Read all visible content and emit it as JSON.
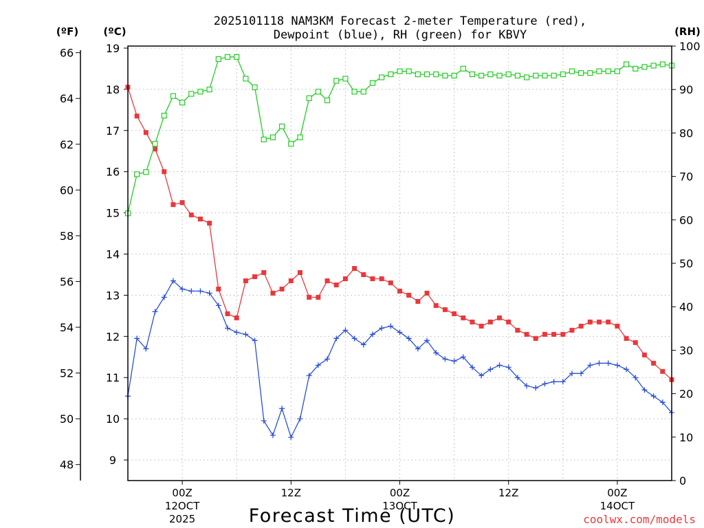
{
  "chart_data": {
    "type": "line",
    "title_line1": "2025101118 NAM3KM Forecast 2-meter Temperature (red),",
    "title_line2": "Dewpoint (blue), RH (green) for KBVY",
    "xlabel": "Forecast Time (UTC)",
    "credit": "coolwx.com/models",
    "units": {
      "fahrenheit": "(ºF)",
      "celsius": "(ºC)",
      "rh": "(RH)"
    },
    "x_range_hours": [
      -6,
      54
    ],
    "x_ticks": [
      {
        "hour": 0,
        "label": "00Z",
        "sub1": "12OCT",
        "sub2": "2025"
      },
      {
        "hour": 12,
        "label": "12Z",
        "sub1": "",
        "sub2": ""
      },
      {
        "hour": 24,
        "label": "00Z",
        "sub1": "13OCT",
        "sub2": ""
      },
      {
        "hour": 36,
        "label": "12Z",
        "sub1": "",
        "sub2": ""
      },
      {
        "hour": 48,
        "label": "00Z",
        "sub1": "14OCT",
        "sub2": ""
      }
    ],
    "celsius_axis": {
      "range": [
        8.5,
        19.05
      ],
      "ticks": [
        9,
        10,
        11,
        12,
        13,
        14,
        15,
        16,
        17,
        18,
        19
      ]
    },
    "fahrenheit_axis": {
      "ticks": [
        48,
        50,
        52,
        54,
        56,
        58,
        60,
        62,
        64,
        66
      ]
    },
    "rh_axis": {
      "range": [
        0,
        100
      ],
      "ticks": [
        0,
        10,
        20,
        30,
        40,
        50,
        60,
        70,
        80,
        90,
        100
      ]
    },
    "series": [
      {
        "name": "Temperature",
        "units": "C",
        "color": "#e8383d",
        "marker": "filled-square",
        "x": [
          -6,
          -5,
          -4,
          -3,
          -2,
          -1,
          0,
          1,
          2,
          3,
          4,
          5,
          6,
          7,
          8,
          9,
          10,
          11,
          12,
          13,
          14,
          15,
          16,
          17,
          18,
          19,
          20,
          21,
          22,
          23,
          24,
          25,
          26,
          27,
          28,
          29,
          30,
          31,
          32,
          33,
          34,
          35,
          36,
          37,
          38,
          39,
          40,
          41,
          42,
          43,
          44,
          45,
          46,
          47,
          48,
          49,
          50,
          51,
          52,
          53,
          54
        ],
        "values": [
          18.05,
          17.35,
          16.95,
          16.55,
          16.0,
          15.2,
          15.25,
          14.95,
          14.85,
          14.75,
          13.15,
          12.55,
          12.45,
          13.35,
          13.45,
          13.55,
          13.05,
          13.15,
          13.35,
          13.55,
          12.95,
          12.95,
          13.35,
          13.25,
          13.4,
          13.65,
          13.5,
          13.4,
          13.4,
          13.3,
          13.1,
          13.0,
          12.85,
          13.05,
          12.75,
          12.65,
          12.55,
          12.45,
          12.35,
          12.25,
          12.35,
          12.45,
          12.35,
          12.15,
          12.05,
          11.95,
          12.05,
          12.05,
          12.05,
          12.15,
          12.25,
          12.35,
          12.35,
          12.35,
          12.25,
          11.95,
          11.85,
          11.55,
          11.35,
          11.15,
          10.95
        ]
      },
      {
        "name": "Dewpoint",
        "units": "C",
        "color": "#2a4fd6",
        "marker": "plus",
        "x": [
          -6,
          -5,
          -4,
          -3,
          -2,
          -1,
          0,
          1,
          2,
          3,
          4,
          5,
          6,
          7,
          8,
          9,
          10,
          11,
          12,
          13,
          14,
          15,
          16,
          17,
          18,
          19,
          20,
          21,
          22,
          23,
          24,
          25,
          26,
          27,
          28,
          29,
          30,
          31,
          32,
          33,
          34,
          35,
          36,
          37,
          38,
          39,
          40,
          41,
          42,
          43,
          44,
          45,
          46,
          47,
          48,
          49,
          50,
          51,
          52,
          53,
          54
        ],
        "values": [
          10.55,
          11.95,
          11.7,
          12.6,
          12.95,
          13.35,
          13.15,
          13.1,
          13.1,
          13.05,
          12.75,
          12.2,
          12.1,
          12.05,
          11.9,
          9.95,
          9.6,
          10.25,
          9.55,
          10.0,
          11.05,
          11.3,
          11.45,
          11.95,
          12.15,
          11.95,
          11.8,
          12.05,
          12.2,
          12.25,
          12.1,
          11.95,
          11.7,
          11.9,
          11.6,
          11.45,
          11.4,
          11.5,
          11.25,
          11.05,
          11.2,
          11.3,
          11.25,
          11.0,
          10.8,
          10.75,
          10.85,
          10.9,
          10.9,
          11.1,
          11.1,
          11.3,
          11.35,
          11.35,
          11.3,
          11.2,
          11.0,
          10.7,
          10.55,
          10.4,
          10.15
        ]
      },
      {
        "name": "RH",
        "units": "%",
        "color": "#22cc22",
        "marker": "open-square",
        "x": [
          -6,
          -5,
          -4,
          -3,
          -2,
          -1,
          0,
          1,
          2,
          3,
          4,
          5,
          6,
          7,
          8,
          9,
          10,
          11,
          12,
          13,
          14,
          15,
          16,
          17,
          18,
          19,
          20,
          21,
          22,
          23,
          24,
          25,
          26,
          27,
          28,
          29,
          30,
          31,
          32,
          33,
          34,
          35,
          36,
          37,
          38,
          39,
          40,
          41,
          42,
          43,
          44,
          45,
          46,
          47,
          48,
          49,
          50,
          51,
          52,
          53,
          54
        ],
        "values": [
          61.5,
          70.5,
          71,
          77.5,
          84,
          88.5,
          87,
          89,
          89.5,
          90,
          97,
          97.5,
          97.5,
          92.5,
          90.5,
          78.5,
          79,
          81.5,
          77.5,
          79,
          88,
          89.5,
          87.5,
          92,
          92.5,
          89.5,
          89.5,
          91.5,
          92.8,
          93.5,
          94.2,
          94.2,
          93.5,
          93.5,
          93.5,
          93.2,
          93.2,
          94.8,
          93.5,
          93.2,
          93.5,
          93.2,
          93.5,
          93.2,
          92.8,
          93.2,
          93.2,
          93.2,
          93.5,
          94.2,
          93.8,
          93.8,
          94.2,
          94.2,
          94.2,
          95.8,
          94.8,
          95.2,
          95.5,
          95.8,
          95.5
        ]
      }
    ]
  }
}
